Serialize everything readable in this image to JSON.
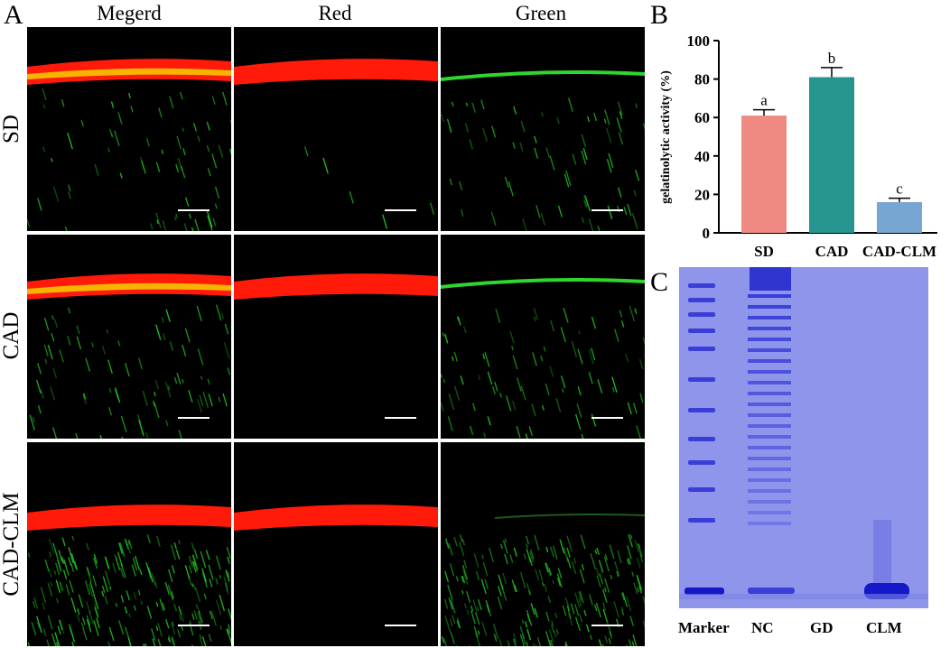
{
  "panels": {
    "a": "A",
    "b": "B",
    "c": "C"
  },
  "micrograph_grid": {
    "columns": [
      "Megerd",
      "Red",
      "Green"
    ],
    "rows": [
      "SD",
      "CAD",
      "CAD-CLM"
    ]
  },
  "chart_data": {
    "type": "bar",
    "categories": [
      "SD",
      "CAD",
      "CAD-CLM"
    ],
    "values": [
      61,
      81,
      16
    ],
    "errors": [
      3,
      5,
      2
    ],
    "significance_letters": [
      "a",
      "b",
      "c"
    ],
    "colors": [
      "#ee8a82",
      "#25958e",
      "#78a6d3"
    ],
    "ylabel": "gelatinolytic activity (%)",
    "ylim": [
      0,
      100
    ],
    "yticks": [
      0,
      20,
      40,
      60,
      80,
      100
    ],
    "grid": false
  },
  "gel": {
    "lanes": [
      "Marker",
      "NC",
      "GD",
      "CLM"
    ],
    "background_color": "#8e95ea",
    "band_color": "#2b2fd6"
  }
}
